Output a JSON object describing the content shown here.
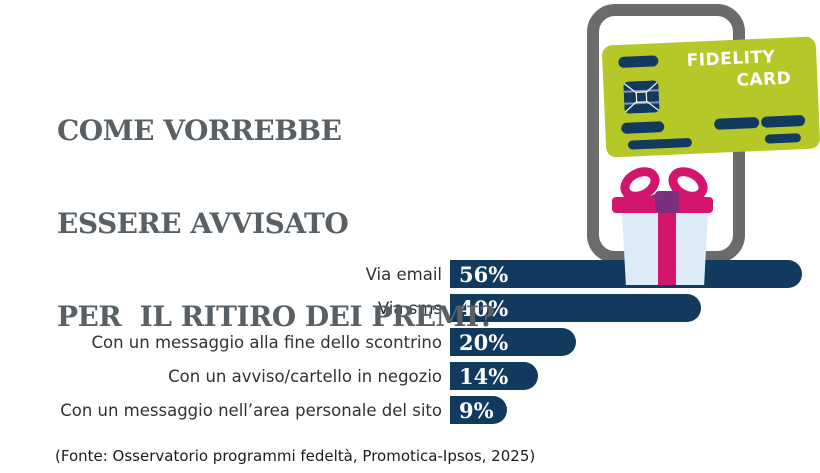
{
  "title": {
    "line1": "COME VORREBBE",
    "line2": "ESSERE AVVISATO",
    "line3": "PER  IL RITIRO DEI PREMI?"
  },
  "chart_data": {
    "type": "bar",
    "orientation": "horizontal",
    "title": "COME VORREBBE ESSERE AVVISATO PER IL RITIRO DEI PREMI?",
    "categories": [
      "Via email",
      "Via sms",
      "Con un messaggio alla fine dello scontrino",
      "Con un avviso/cartello in negozio",
      "Con un messaggio nell’area personale del sito"
    ],
    "values": [
      56,
      40,
      20,
      14,
      9
    ],
    "value_labels": [
      "56%",
      "40%",
      "20%",
      "14%",
      "9%"
    ],
    "xlim": [
      0,
      60
    ],
    "grid": false,
    "legend": "none",
    "bar_color": "#12395e",
    "value_text_color": "#ffffff",
    "source": "(Fonte: Osservatorio programmi fedeltà, Promotica-Ipsos, 2025)"
  },
  "footer": {
    "source": "(Fonte: Osservatorio programmi fedeltà, Promotica-Ipsos, 2025)"
  },
  "illustration": {
    "fidelity_card": {
      "line1": "FIDELITY",
      "line2": "CARD"
    },
    "icons": {
      "smartphone": "smartphone-outline",
      "card_chip": "card-chip",
      "gift": "gift-box-with-bow"
    },
    "colors": {
      "navy": "#12395e",
      "card_green": "#b5c827",
      "pink": "#d3156e",
      "purple": "#7c2e7f",
      "gift_blue": "#dcebf5",
      "phone_gray": "#6b6b6b",
      "title_gray": "#596065",
      "label_dark": "#2f3134",
      "footer_dark": "#1c1c1c"
    }
  }
}
